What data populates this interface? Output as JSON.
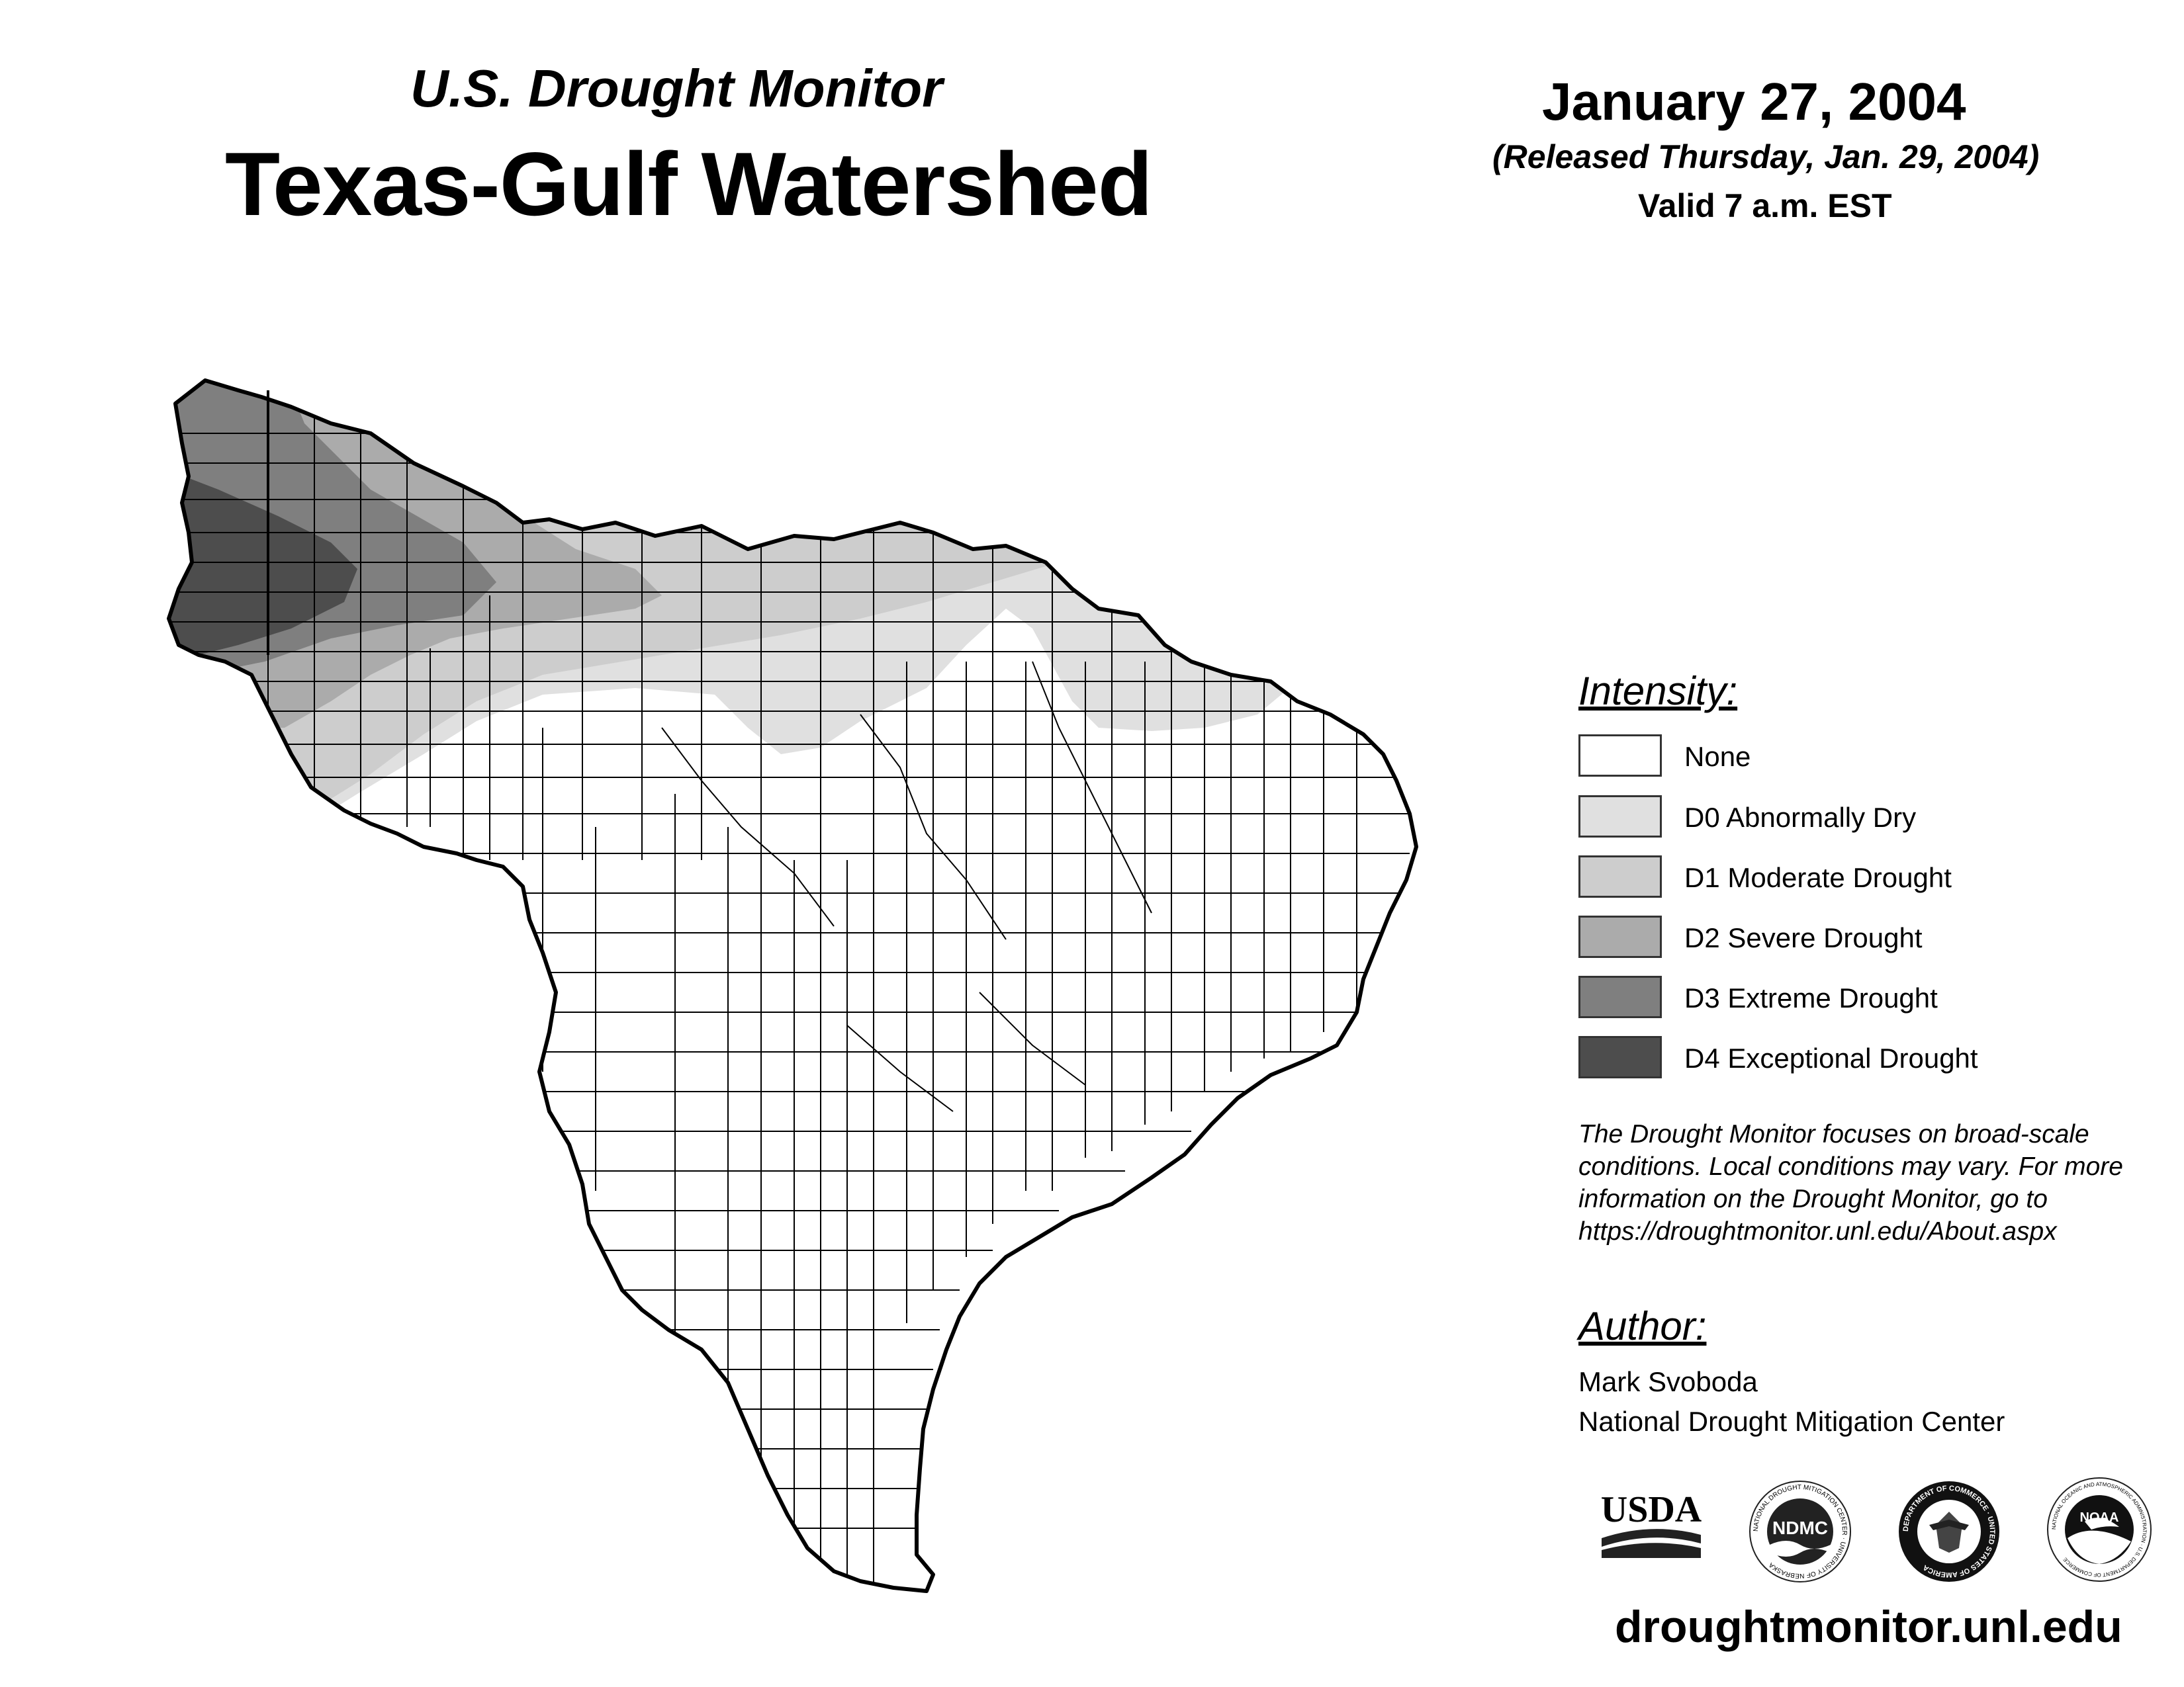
{
  "header": {
    "subtitle": "U.S. Drought Monitor",
    "title": "Texas-Gulf Watershed",
    "date": "January 27, 2004",
    "released": "(Released Thursday, Jan. 29, 2004)",
    "valid": "Valid 7 a.m. EST"
  },
  "legend": {
    "title": "Intensity:",
    "items": [
      {
        "label": "None",
        "color": "#ffffff"
      },
      {
        "label": "D0 Abnormally Dry",
        "color": "#e0e0e0"
      },
      {
        "label": "D1 Moderate Drought",
        "color": "#cdcdcd"
      },
      {
        "label": "D2 Severe Drought",
        "color": "#ababab"
      },
      {
        "label": "D3 Extreme Drought",
        "color": "#7f7f7f"
      },
      {
        "label": "D4 Exceptional Drought",
        "color": "#4d4d4d"
      }
    ]
  },
  "note": "The Drought Monitor focuses on broad-scale conditions. Local conditions may vary. For more information on the Drought Monitor, go to https://droughtmonitor.unl.edu/About.aspx",
  "author": {
    "title": "Author:",
    "name": "Mark Svoboda",
    "org": "National Drought Mitigation Center"
  },
  "logos": {
    "usda": "USDA",
    "ndmc": "NDMC",
    "ndmc_ring": "NATIONAL DROUGHT MITIGATION CENTER · UNIVERSITY OF NEBRASKA",
    "doc_ring": "DEPARTMENT OF COMMERCE · UNITED STATES OF AMERICA",
    "noaa": "NOAA",
    "noaa_ring": "NATIONAL OCEANIC AND ATMOSPHERIC ADMINISTRATION · U.S. DEPARTMENT OF COMMERCE"
  },
  "website": "droughtmonitor.unl.edu"
}
